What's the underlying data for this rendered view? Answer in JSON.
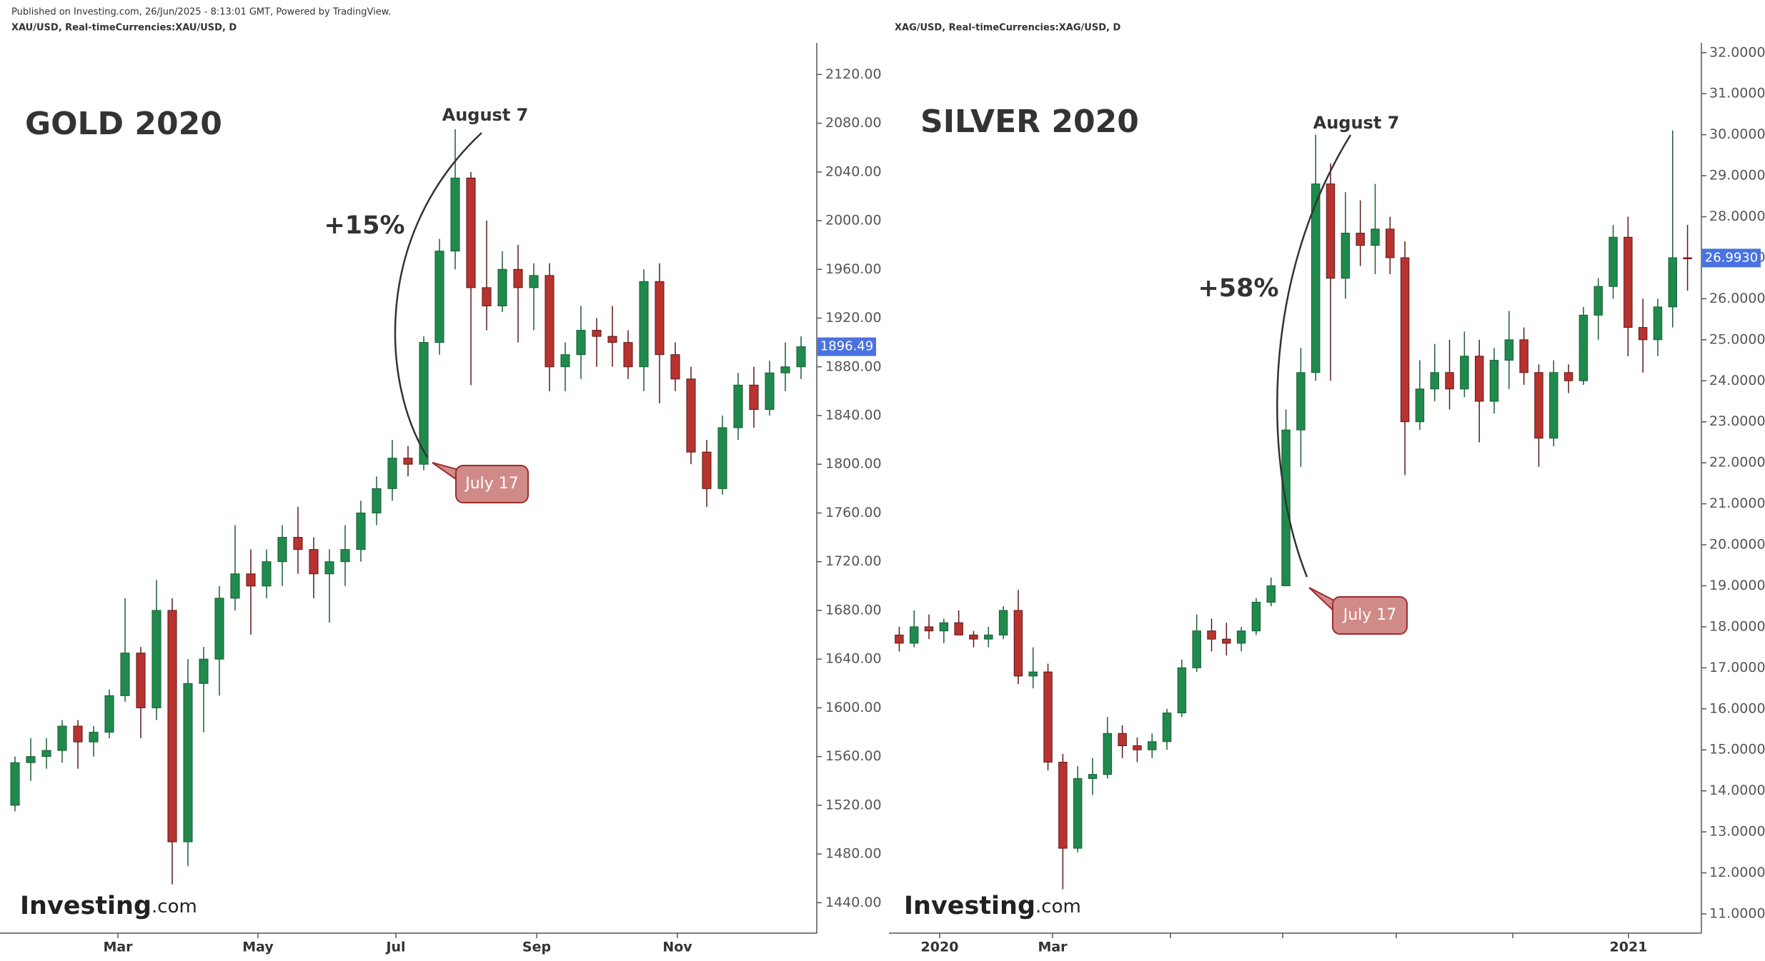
{
  "published": "Published on Investing.com, 26/Jun/2025 - 8:13:01 GMT, Powered by TradingView.",
  "chart_data": [
    {
      "type": "candlestick",
      "header": "XAU/USD, Real-timeCurrencies:XAU/USD, D",
      "title": "GOLD 2020",
      "peak_label": "August 7",
      "change_label": "+15%",
      "start_label": "July 17",
      "logo_text": "Investing",
      "logo_suffix": ".com",
      "up_color": "#1f8a4c",
      "down_color": "#b8332f",
      "xtick_labels": [
        "Mar",
        "May",
        "Jul",
        "Sep",
        "Nov"
      ],
      "ylim": [
        1415,
        2146
      ],
      "yticks": [
        {
          "value": 1440,
          "label": "1440.00"
        },
        {
          "value": 1480,
          "label": "1480.00"
        },
        {
          "value": 1520,
          "label": "1520.00"
        },
        {
          "value": 1560,
          "label": "1560.00"
        },
        {
          "value": 1600,
          "label": "1600.00"
        },
        {
          "value": 1640,
          "label": "1640.00"
        },
        {
          "value": 1680,
          "label": "1680.00"
        },
        {
          "value": 1720,
          "label": "1720.00"
        },
        {
          "value": 1760,
          "label": "1760.00"
        },
        {
          "value": 1800,
          "label": "1800.00"
        },
        {
          "value": 1840,
          "label": "1840.00"
        },
        {
          "value": 1880,
          "label": "1880.00"
        },
        {
          "value": 1920,
          "label": "1920.00"
        },
        {
          "value": 1960,
          "label": "1960.00"
        },
        {
          "value": 2000,
          "label": "2000.00"
        },
        {
          "value": 2040,
          "label": "2040.00"
        },
        {
          "value": 2080,
          "label": "2080.00"
        },
        {
          "value": 2120,
          "label": "2120.00"
        }
      ],
      "last_price": 1896.49,
      "open": [
        1520,
        1555,
        1560,
        1565,
        1585,
        1572,
        1580,
        1610,
        1645,
        1600,
        1680,
        1490,
        1620,
        1640,
        1690,
        1710,
        1700,
        1720,
        1740,
        1730,
        1710,
        1720,
        1730,
        1760,
        1780,
        1805,
        1800,
        1900,
        1975,
        2035,
        1945,
        1930,
        1960,
        1945,
        1955,
        1880,
        1890,
        1910,
        1905,
        1900,
        1880,
        1950,
        1890,
        1870,
        1810,
        1780,
        1830,
        1865,
        1845,
        1875,
        1880
      ],
      "high": [
        1560,
        1575,
        1575,
        1590,
        1590,
        1585,
        1615,
        1690,
        1650,
        1705,
        1690,
        1640,
        1650,
        1700,
        1750,
        1730,
        1730,
        1750,
        1765,
        1740,
        1730,
        1750,
        1770,
        1790,
        1820,
        1815,
        1905,
        1985,
        2075,
        2040,
        2000,
        1975,
        1980,
        1965,
        1965,
        1900,
        1930,
        1920,
        1930,
        1910,
        1960,
        1965,
        1900,
        1880,
        1820,
        1840,
        1875,
        1880,
        1885,
        1900,
        1905
      ],
      "low": [
        1515,
        1540,
        1550,
        1555,
        1550,
        1560,
        1575,
        1605,
        1575,
        1590,
        1455,
        1470,
        1580,
        1610,
        1680,
        1660,
        1690,
        1700,
        1710,
        1690,
        1670,
        1700,
        1720,
        1750,
        1770,
        1790,
        1795,
        1890,
        1960,
        1865,
        1910,
        1925,
        1900,
        1910,
        1860,
        1860,
        1870,
        1880,
        1880,
        1870,
        1860,
        1850,
        1860,
        1800,
        1765,
        1775,
        1820,
        1830,
        1840,
        1860,
        1870
      ],
      "close": [
        1555,
        1560,
        1565,
        1585,
        1572,
        1580,
        1610,
        1645,
        1600,
        1680,
        1490,
        1620,
        1640,
        1690,
        1710,
        1700,
        1720,
        1740,
        1730,
        1710,
        1720,
        1730,
        1760,
        1780,
        1805,
        1800,
        1900,
        1975,
        2035,
        1945,
        1930,
        1960,
        1945,
        1955,
        1880,
        1890,
        1910,
        1905,
        1900,
        1880,
        1950,
        1890,
        1870,
        1810,
        1780,
        1830,
        1865,
        1845,
        1875,
        1880,
        1896.49
      ]
    },
    {
      "type": "candlestick",
      "header": "XAG/USD, Real-timeCurrencies:XAG/USD, D",
      "title": "SILVER 2020",
      "peak_label": "August 7",
      "change_label": "+58%",
      "start_label": "July 17",
      "logo_text": "Investing",
      "logo_suffix": ".com",
      "up_color": "#1f8a4c",
      "down_color": "#b8332f",
      "xtick_labels": [
        "2020",
        "Mar",
        null,
        null,
        null,
        null,
        "2021"
      ],
      "ylim": [
        10.53,
        32.24
      ],
      "yticks": [
        {
          "value": 11,
          "label": "11.0000"
        },
        {
          "value": 12,
          "label": "12.0000"
        },
        {
          "value": 13,
          "label": "13.0000"
        },
        {
          "value": 14,
          "label": "14.0000"
        },
        {
          "value": 15,
          "label": "15.0000"
        },
        {
          "value": 16,
          "label": "16.0000"
        },
        {
          "value": 17,
          "label": "17.0000"
        },
        {
          "value": 18,
          "label": "18.0000"
        },
        {
          "value": 19,
          "label": "19.0000"
        },
        {
          "value": 20,
          "label": "20.0000"
        },
        {
          "value": 21,
          "label": "21.0000"
        },
        {
          "value": 22,
          "label": "22.0000"
        },
        {
          "value": 23,
          "label": "23.0000"
        },
        {
          "value": 24,
          "label": "24.0000"
        },
        {
          "value": 25,
          "label": "25.0000"
        },
        {
          "value": 26,
          "label": "26.0000"
        },
        {
          "value": 27,
          "label": "27.0000"
        },
        {
          "value": 28,
          "label": "28.0000"
        },
        {
          "value": 29,
          "label": "29.0000"
        },
        {
          "value": 30,
          "label": "30.0000"
        },
        {
          "value": 31,
          "label": "31.0000"
        },
        {
          "value": 32,
          "label": "32.0000"
        }
      ],
      "last_price": {
        "value": 26.993,
        "label": "26.9930"
      },
      "open": [
        17.8,
        17.6,
        18.0,
        17.9,
        18.1,
        17.8,
        17.7,
        17.8,
        18.4,
        16.8,
        16.9,
        14.7,
        12.6,
        14.3,
        14.4,
        15.4,
        15.1,
        15.0,
        15.2,
        15.9,
        17.0,
        17.9,
        17.7,
        17.6,
        17.9,
        18.6,
        19.0,
        22.8,
        24.2,
        28.8,
        26.5,
        27.6,
        27.3,
        27.7,
        27.0,
        23.0,
        23.8,
        24.2,
        23.8,
        24.6,
        23.5,
        24.5,
        25.0,
        24.2,
        22.6,
        24.2,
        24.0,
        25.6,
        26.3,
        27.5,
        25.3,
        25.0,
        25.8,
        27.0
      ],
      "high": [
        18.0,
        18.4,
        18.3,
        18.2,
        18.4,
        17.9,
        18.0,
        18.5,
        18.9,
        17.5,
        17.1,
        14.9,
        14.6,
        14.8,
        15.8,
        15.6,
        15.3,
        15.4,
        16.0,
        17.2,
        18.3,
        18.2,
        18.1,
        18.0,
        18.7,
        19.2,
        23.3,
        24.8,
        30.0,
        29.3,
        28.6,
        28.4,
        28.8,
        28.0,
        27.4,
        24.5,
        24.9,
        25.0,
        25.2,
        25.0,
        24.8,
        25.7,
        25.3,
        24.4,
        24.5,
        24.4,
        25.8,
        26.5,
        27.8,
        28.0,
        26.0,
        26.0,
        30.1,
        27.8
      ],
      "low": [
        17.4,
        17.5,
        17.7,
        17.6,
        17.8,
        17.5,
        17.5,
        17.7,
        16.6,
        16.5,
        14.5,
        11.6,
        12.5,
        13.9,
        14.3,
        14.8,
        14.7,
        14.8,
        15.0,
        15.8,
        16.9,
        17.4,
        17.3,
        17.4,
        17.8,
        18.5,
        19.0,
        21.9,
        24.0,
        24.0,
        26.0,
        26.8,
        26.6,
        26.6,
        21.7,
        22.8,
        23.5,
        23.3,
        23.6,
        22.5,
        23.2,
        23.8,
        23.9,
        21.9,
        22.4,
        23.7,
        23.9,
        25.0,
        26.0,
        24.6,
        24.2,
        24.6,
        25.3,
        26.2
      ],
      "close": [
        17.6,
        18.0,
        17.9,
        18.1,
        17.8,
        17.7,
        17.8,
        18.4,
        16.8,
        16.9,
        14.7,
        12.6,
        14.3,
        14.4,
        15.4,
        15.1,
        15.0,
        15.2,
        15.9,
        17.0,
        17.9,
        17.7,
        17.6,
        17.9,
        18.6,
        19.0,
        22.8,
        24.2,
        28.8,
        26.5,
        27.6,
        27.3,
        27.7,
        27.0,
        23.0,
        23.8,
        24.2,
        23.8,
        24.6,
        23.5,
        24.5,
        25.0,
        24.2,
        22.6,
        24.2,
        24.0,
        25.6,
        26.3,
        27.5,
        25.3,
        25.0,
        25.8,
        27.0,
        26.993
      ]
    }
  ]
}
